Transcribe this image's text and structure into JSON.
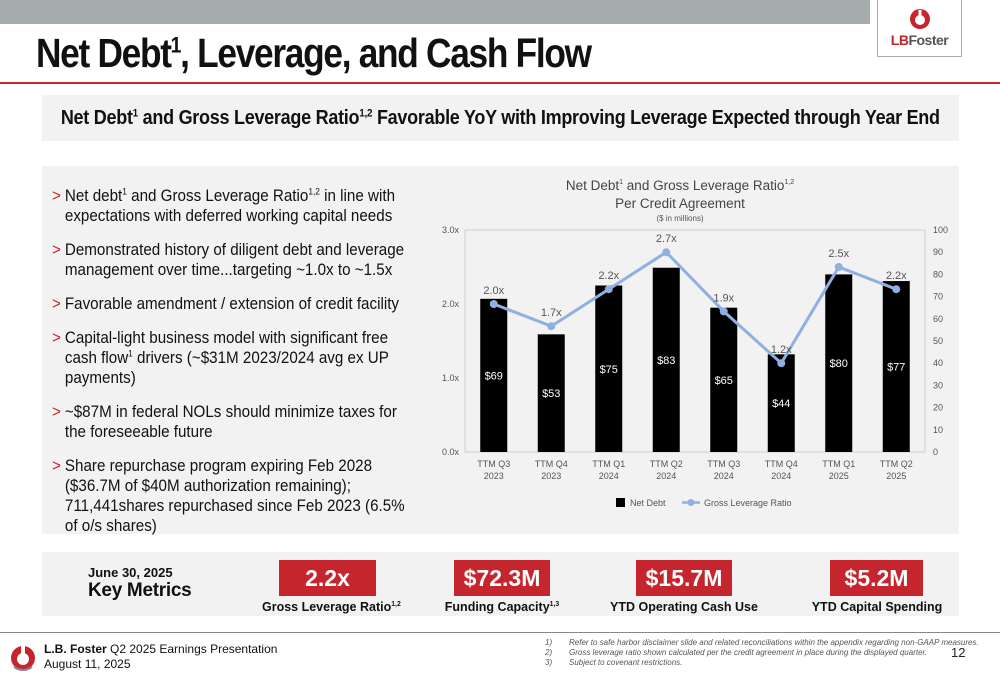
{
  "header": {
    "title_main": "Net Debt",
    "title_sup": "1",
    "title_rest": ", Leverage, and Cash Flow",
    "logo_text_lb": "LB",
    "logo_text_foster": "Foster",
    "subtitle_a": "Net Debt",
    "subtitle_sup1": "1",
    "subtitle_b": " and Gross Leverage Ratio",
    "subtitle_sup2": "1,2",
    "subtitle_c": " Favorable YoY with Improving Leverage Expected through Year End"
  },
  "bullets": [
    {
      "a": "Net debt",
      "sup": "1",
      "b": " and Gross Leverage Ratio",
      "sup2": "1,2",
      "c": "  in line with expectations with deferred working capital needs"
    },
    {
      "a": "Demonstrated history of diligent debt and leverage management over time...targeting ~1.0x to ~1.5x"
    },
    {
      "a": "Favorable amendment / extension of credit facility"
    },
    {
      "a": "Capital-light business model with significant free cash flow",
      "sup": "1",
      "b": " drivers (~$31M 2023/2024 avg ex UP payments)"
    },
    {
      "a": "~$87M in federal NOLs should minimize taxes for the foreseeable future"
    },
    {
      "a": "Share repurchase program expiring Feb 2028 ($36.7M of $40M authorization remaining); 711,441shares repurchased since Feb 2023 (6.5% of o/s shares)"
    }
  ],
  "chart_data": {
    "type": "bar",
    "title_a": "Net Debt",
    "title_sup1": "1",
    "title_b": " and Gross Leverage Ratio",
    "title_sup2": "1,2",
    "title_line2": "Per Credit Agreement",
    "subtitle": "($ in millions)",
    "categories": [
      [
        "TTM Q3",
        "2023"
      ],
      [
        "TTM Q4",
        "2023"
      ],
      [
        "TTM Q1",
        "2024"
      ],
      [
        "TTM Q2",
        "2024"
      ],
      [
        "TTM Q3",
        "2024"
      ],
      [
        "TTM Q4",
        "2024"
      ],
      [
        "TTM Q1",
        "2025"
      ],
      [
        "TTM Q2",
        "2025"
      ]
    ],
    "series": [
      {
        "name": "Net Debt",
        "axis": "right",
        "values": [
          69,
          53,
          75,
          83,
          65,
          44,
          80,
          77
        ],
        "labels": [
          "$69",
          "$53",
          "$75",
          "$83",
          "$65",
          "$44",
          "$80",
          "$77"
        ],
        "color": "#000000"
      },
      {
        "name": "Gross Leverage Ratio",
        "axis": "left",
        "type": "line",
        "values": [
          2.0,
          1.7,
          2.2,
          2.7,
          1.9,
          1.2,
          2.5,
          2.2
        ],
        "labels": [
          "2.0x",
          "1.7x",
          "2.2x",
          "2.7x",
          "1.9x",
          "1.2x",
          "2.5x",
          "2.2x"
        ],
        "color": "#8fb0e0"
      }
    ],
    "y_left": {
      "range": [
        0,
        3
      ],
      "ticks": [
        "0.0x",
        "1.0x",
        "2.0x",
        "3.0x"
      ]
    },
    "y_right": {
      "range": [
        0,
        100
      ],
      "ticks": [
        "0",
        "10",
        "20",
        "30",
        "40",
        "50",
        "60",
        "70",
        "80",
        "90",
        "100"
      ]
    },
    "grid": false,
    "legend": "bottom"
  },
  "metrics": {
    "date": "June 30, 2025",
    "title": "Key Metrics",
    "items": [
      {
        "value": "2.2x",
        "label": "Gross Leverage Ratio",
        "sup": "1,2"
      },
      {
        "value": "$72.3M",
        "label": "Funding Capacity",
        "sup": "1,3"
      },
      {
        "value": "$15.7M",
        "label": "YTD Operating Cash Use",
        "sup": ""
      },
      {
        "value": "$5.2M",
        "label": "YTD Capital Spending",
        "sup": ""
      }
    ]
  },
  "footer": {
    "company_bold": "L.B. Foster",
    "company_rest": " Q2 2025 Earnings Presentation",
    "date": "August 11, 2025",
    "footnotes": [
      {
        "n": "1)",
        "text": "Refer to safe harbor disclaimer slide and related reconciliations within the appendix regarding non-GAAP measures."
      },
      {
        "n": "2)",
        "text": "Gross leverage ratio shown calculated per the credit agreement in place during the displayed quarter."
      },
      {
        "n": "3)",
        "text": "Subject to covenant restrictions."
      }
    ],
    "page": "12"
  },
  "colors": {
    "accent": "#c5262d",
    "band": "#f2f2f2",
    "topbar": "#a7adaf"
  }
}
